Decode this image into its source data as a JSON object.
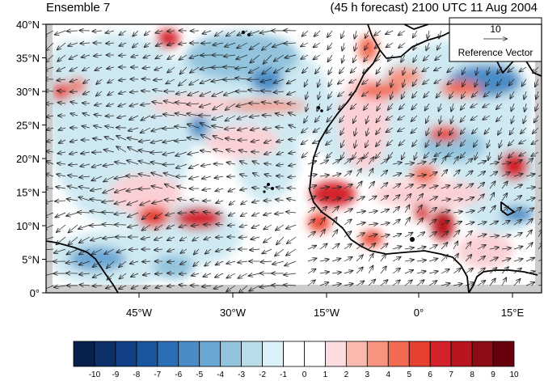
{
  "header": {
    "left_title": "Ensemble 7",
    "right_title": "(45 h forecast) 2100 UTC 11 Aug 2004"
  },
  "map": {
    "lat_labels": [
      "40°N",
      "35°N",
      "30°N",
      "25°N",
      "20°N",
      "15°N",
      "10°N",
      "5°N",
      "0°"
    ],
    "lon_labels": [
      "45°W",
      "30°W",
      "15°W",
      "0°",
      "15°E"
    ],
    "colors": {
      "land_outline": "#000000",
      "positive_strong": "#c5161c",
      "positive_light": "#fbd0d4",
      "negative_strong": "#2c6aa8",
      "negative_light": "#cfe9f2",
      "missing": "#cccccc"
    }
  },
  "reference_vector": {
    "magnitude": "10",
    "label": "Reference Vector"
  },
  "colorbar": {
    "labels": [
      "-10",
      "-9",
      "-8",
      "-7",
      "-6",
      "-5",
      "-4",
      "-3",
      "-2",
      "-1",
      "0",
      "1",
      "2",
      "3",
      "4",
      "5",
      "6",
      "7",
      "8",
      "9",
      "10"
    ],
    "colors": [
      "#08204c",
      "#0d2f6a",
      "#123f86",
      "#1a55a0",
      "#2a6fb5",
      "#4a8cc6",
      "#6aa7d3",
      "#92c4dd",
      "#b8dde9",
      "#daf1f7",
      "#ffffff",
      "#ffffff",
      "#fcdcdf",
      "#f9b9ae",
      "#f7937f",
      "#f26a51",
      "#e8402e",
      "#d3222a",
      "#b8151f",
      "#8d0d17",
      "#67000d"
    ]
  }
}
